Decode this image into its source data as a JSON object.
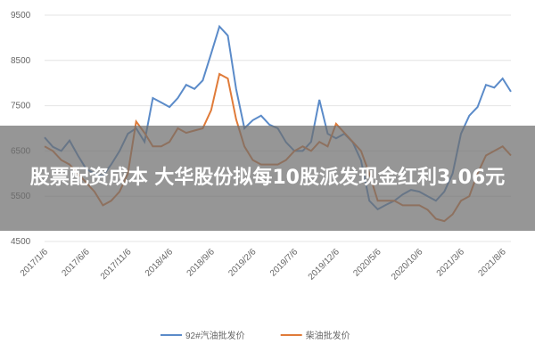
{
  "chart_data": {
    "type": "line",
    "categories": [
      "2017/1/6",
      null,
      null,
      null,
      null,
      "2017/6/6",
      null,
      null,
      null,
      null,
      "2017/11/6",
      null,
      null,
      null,
      null,
      "2018/4/6",
      null,
      null,
      null,
      null,
      "2018/9/6",
      null,
      null,
      null,
      null,
      "2019/2/6",
      null,
      null,
      null,
      null,
      "2019/7/6",
      null,
      null,
      null,
      null,
      "2019/12/6",
      null,
      null,
      null,
      null,
      "2020/5/6",
      null,
      null,
      null,
      null,
      "2020/10/6",
      null,
      null,
      null,
      null,
      "2021/3/6",
      null,
      null,
      null,
      null,
      "2021/8/6",
      null
    ],
    "series": [
      {
        "name": "92#汽油批发价",
        "color": "#5b8bc9",
        "values": [
          6800,
          6590,
          6500,
          6730,
          6400,
          6100,
          6000,
          5950,
          6200,
          6500,
          6880,
          7000,
          6700,
          7670,
          7570,
          7470,
          7670,
          7960,
          7870,
          8060,
          8650,
          9250,
          9050,
          7870,
          7000,
          7180,
          7280,
          7080,
          7000,
          6690,
          6500,
          6500,
          6700,
          7630,
          6880,
          6780,
          6880,
          6690,
          6290,
          5400,
          5210,
          5310,
          5400,
          5540,
          5640,
          5600,
          5500,
          5400,
          5600,
          6000,
          6880,
          7280,
          7470,
          7960,
          7900,
          8100,
          7810
        ]
      },
      {
        "name": "柴油批发价",
        "color": "#e07b39",
        "values": [
          6600,
          6500,
          6300,
          6200,
          6000,
          5800,
          5600,
          5300,
          5400,
          5600,
          6000,
          7150,
          6900,
          6600,
          6600,
          6700,
          7000,
          6900,
          6950,
          7000,
          7400,
          8200,
          8100,
          7200,
          6600,
          6300,
          6200,
          6200,
          6200,
          6300,
          6500,
          6600,
          6500,
          6700,
          6600,
          7100,
          6900,
          6700,
          6500,
          6000,
          5400,
          5400,
          5400,
          5300,
          5300,
          5300,
          5200,
          5000,
          4950,
          5100,
          5400,
          5500,
          6000,
          6400,
          6500,
          6600,
          6400
        ]
      }
    ],
    "ylim": [
      4500,
      9500
    ],
    "yticks": [
      4500,
      5500,
      6500,
      7500,
      8500,
      9500
    ],
    "grid": true,
    "legend": "bottom"
  },
  "overlay": {
    "title": "股票配资成本 大华股份拟每10股派发现金红利3.06元"
  }
}
